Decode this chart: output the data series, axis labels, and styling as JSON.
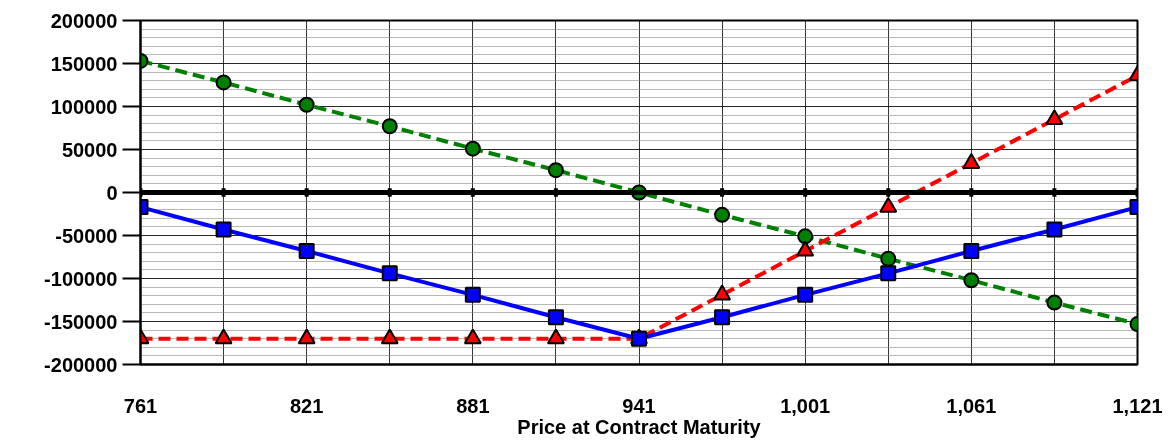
{
  "chart_data": {
    "type": "line",
    "xlabel": "Price at Contract Maturity",
    "x": [
      761,
      791,
      821,
      851,
      881,
      911,
      941,
      971,
      1001,
      1031,
      1061,
      1091,
      1121
    ],
    "xlim": [
      761,
      1121
    ],
    "xticks": [
      {
        "value": 761,
        "label": "761"
      },
      {
        "value": 791,
        "label": null
      },
      {
        "value": 821,
        "label": "821"
      },
      {
        "value": 851,
        "label": null
      },
      {
        "value": 881,
        "label": "881"
      },
      {
        "value": 911,
        "label": null
      },
      {
        "value": 941,
        "label": "941"
      },
      {
        "value": 971,
        "label": null
      },
      {
        "value": 1001,
        "label": "1,001"
      },
      {
        "value": 1031,
        "label": null
      },
      {
        "value": 1061,
        "label": "1,061"
      },
      {
        "value": 1091,
        "label": null
      },
      {
        "value": 1121,
        "label": "1,121"
      }
    ],
    "ylim": [
      -200000,
      200000
    ],
    "yticks": [
      -200000,
      -150000,
      -100000,
      -50000,
      0,
      50000,
      100000,
      150000,
      200000
    ],
    "grid": true,
    "ref_lines": [
      {
        "axis": "y",
        "value": 0,
        "color": "#000000"
      }
    ],
    "series": [
      {
        "color": "#008000",
        "marker": "circle",
        "line_style": "dashed",
        "values": [
          153000,
          128000,
          102000,
          77000,
          51000,
          26000,
          0,
          -26000,
          -51000,
          -77000,
          -102000,
          -128000,
          -153000
        ]
      },
      {
        "color": "#ff0000",
        "marker": "triangle",
        "line_style": "dashed",
        "values": [
          -170000,
          -170000,
          -170000,
          -170000,
          -170000,
          -170000,
          -170000,
          -119000,
          -68000,
          -17000,
          34000,
          85000,
          136000
        ]
      },
      {
        "color": "#0000ff",
        "marker": "square",
        "line_style": "solid",
        "values": [
          -17000,
          -43000,
          -68000,
          -94000,
          -119000,
          -145000,
          -170000,
          -145000,
          -119000,
          -94000,
          -68000,
          -43000,
          -17000
        ]
      }
    ]
  }
}
